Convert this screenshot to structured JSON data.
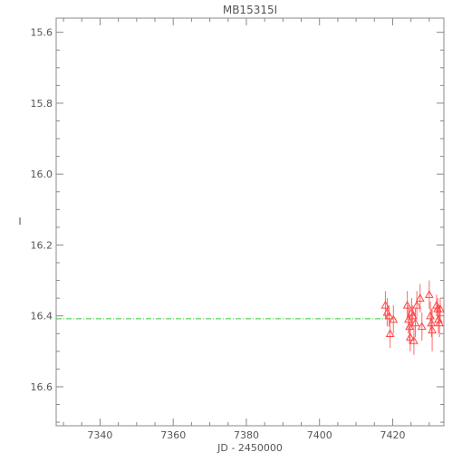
{
  "chart_data": {
    "type": "scatter",
    "title": "MB15315I",
    "xlabel": "JD - 2450000",
    "ylabel": "I",
    "xlim": [
      7328,
      7434
    ],
    "ylim": [
      16.71,
      15.56
    ],
    "y_inverted": true,
    "x_ticks": [
      7340,
      7360,
      7380,
      7400,
      7420
    ],
    "x_tick_labels": [
      "7340",
      "7360",
      "7380",
      "7400",
      "7420"
    ],
    "y_ticks": [
      15.6,
      15.8,
      16.0,
      16.2,
      16.4,
      16.6
    ],
    "y_tick_labels": [
      "15.6",
      "15.8",
      "16.0",
      "16.2",
      "16.4",
      "16.6"
    ],
    "grid": false,
    "reference_line": {
      "y": 16.408,
      "x_start": 7328,
      "x_end": 7421,
      "color": "#33cc33",
      "style": "dashed"
    },
    "series": [
      {
        "marker": "triangle-open",
        "color": "#ff4444",
        "points": [
          {
            "x": 7418.0,
            "y": 16.37,
            "err": 0.04
          },
          {
            "x": 7418.5,
            "y": 16.39,
            "err": 0.04
          },
          {
            "x": 7419.0,
            "y": 16.4,
            "err": 0.03
          },
          {
            "x": 7419.3,
            "y": 16.45,
            "err": 0.04
          },
          {
            "x": 7420.2,
            "y": 16.41,
            "err": 0.04
          },
          {
            "x": 7424.0,
            "y": 16.37,
            "err": 0.04
          },
          {
            "x": 7424.3,
            "y": 16.41,
            "err": 0.04
          },
          {
            "x": 7424.6,
            "y": 16.43,
            "err": 0.05
          },
          {
            "x": 7424.8,
            "y": 16.46,
            "err": 0.04
          },
          {
            "x": 7425.2,
            "y": 16.39,
            "err": 0.04
          },
          {
            "x": 7425.5,
            "y": 16.4,
            "err": 0.03
          },
          {
            "x": 7425.8,
            "y": 16.47,
            "err": 0.04
          },
          {
            "x": 7426.2,
            "y": 16.42,
            "err": 0.04
          },
          {
            "x": 7426.6,
            "y": 16.37,
            "err": 0.04
          },
          {
            "x": 7427.5,
            "y": 16.35,
            "err": 0.04
          },
          {
            "x": 7428.0,
            "y": 16.43,
            "err": 0.04
          },
          {
            "x": 7430.0,
            "y": 16.34,
            "err": 0.04
          },
          {
            "x": 7430.3,
            "y": 16.4,
            "err": 0.04
          },
          {
            "x": 7430.6,
            "y": 16.42,
            "err": 0.04
          },
          {
            "x": 7430.8,
            "y": 16.44,
            "err": 0.06
          },
          {
            "x": 7432.0,
            "y": 16.37,
            "err": 0.03
          },
          {
            "x": 7432.3,
            "y": 16.38,
            "err": 0.03
          },
          {
            "x": 7432.5,
            "y": 16.41,
            "err": 0.04
          },
          {
            "x": 7432.8,
            "y": 16.42,
            "err": 0.04
          },
          {
            "x": 7433.0,
            "y": 16.38,
            "err": 0.03
          }
        ]
      }
    ]
  }
}
